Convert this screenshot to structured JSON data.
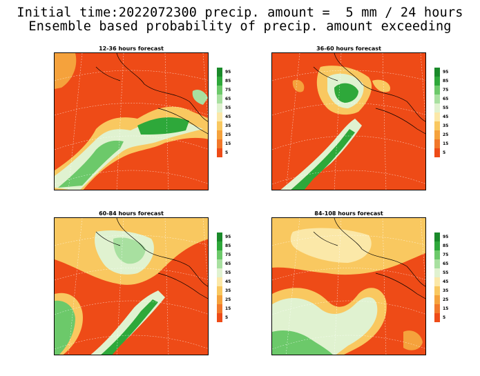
{
  "header": {
    "title_line1": "Initial time:2022072300 precip. amount =  5 mm / 24 hours",
    "title_line2": "Ensemble based probability of precip. amount exceeding"
  },
  "panels": [
    {
      "title": "12-36 hours forecast"
    },
    {
      "title": "36-60 hours forecast"
    },
    {
      "title": "60-84 hours forecast"
    },
    {
      "title": "84-108 hours forecast"
    }
  ],
  "colorbar": {
    "labels": [
      "95",
      "85",
      "75",
      "65",
      "55",
      "45",
      "35",
      "25",
      "15",
      "5"
    ],
    "colors": [
      "#1a8a2a",
      "#2ea83a",
      "#6cc96a",
      "#a8e0a0",
      "#e0f2d0",
      "#fbe8a8",
      "#f9c860",
      "#f5a23c",
      "#f2782a",
      "#ee4b17"
    ]
  },
  "palette": {
    "land_low": "#ee4b17",
    "contour": "#000000",
    "grid": "#dddddd"
  }
}
